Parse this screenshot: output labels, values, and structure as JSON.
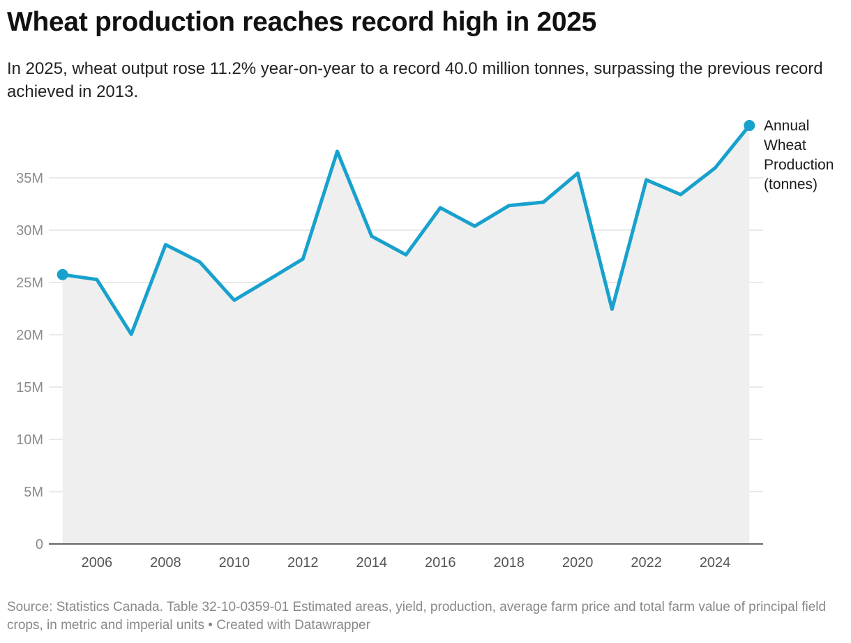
{
  "header": {
    "title": "Wheat production reaches record high in 2025",
    "subtitle": "In 2025, wheat output rose 11.2% year-on-year to a record 40.0 million tonnes, surpassing the previous record achieved in 2013."
  },
  "footer": {
    "source": "Source: Statistics Canada. Table 32-10-0359-01 Estimated areas, yield, production, average farm price and total farm value of principal field crops, in metric and imperial units • Created with Datawrapper"
  },
  "colors": {
    "line": "#18a1cd",
    "area": "#efefef",
    "grid": "#e2e2e2",
    "axis": "#333333"
  },
  "chart_data": {
    "type": "area",
    "x": [
      2005,
      2006,
      2007,
      2008,
      2009,
      2010,
      2011,
      2012,
      2013,
      2014,
      2015,
      2016,
      2017,
      2018,
      2019,
      2020,
      2021,
      2022,
      2023,
      2024,
      2025
    ],
    "series": [
      {
        "name": "Annual Wheat Production (tonnes)",
        "label_lines": [
          "Annual",
          "Wheat",
          "Production",
          "(tonnes)"
        ],
        "values": [
          25750000,
          25280000,
          20050000,
          28610000,
          26950000,
          23300000,
          25260000,
          27250000,
          37530000,
          29420000,
          27650000,
          32140000,
          30380000,
          32350000,
          32670000,
          35440000,
          22440000,
          34810000,
          33400000,
          35940000,
          40000000
        ]
      }
    ],
    "xticks": [
      2006,
      2008,
      2010,
      2012,
      2014,
      2016,
      2018,
      2020,
      2022,
      2024
    ],
    "yticks": [
      0,
      5000000,
      10000000,
      15000000,
      20000000,
      25000000,
      30000000,
      35000000
    ],
    "ytick_labels": [
      "0",
      "5M",
      "10M",
      "15M",
      "20M",
      "25M",
      "30M",
      "35M"
    ],
    "xlim": [
      2004.6,
      2025.4
    ],
    "ylim": [
      0,
      40000000
    ],
    "grid": true,
    "endpoint_markers": true,
    "legend": "direct label at line end"
  }
}
